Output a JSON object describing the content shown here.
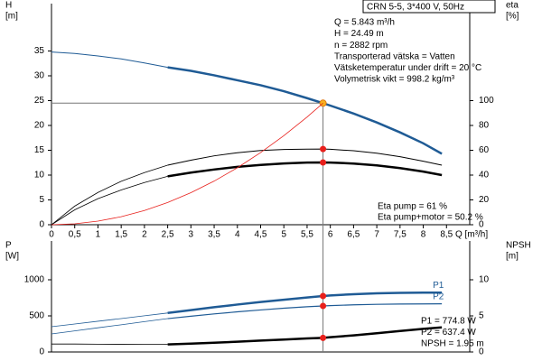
{
  "chart_data": [
    {
      "type": "line",
      "box_title": "CRN 5-5, 3*400 V, 50Hz",
      "info_lines": [
        "Q = 5.843 m³/h",
        "H = 24.49 m",
        "n = 2882 rpm",
        "Transporterad vätska = Vatten",
        "Vätsketemperatur under drift = 20 °C",
        "Volymetrisk vikt = 998.2 kg/m³"
      ],
      "eta_lines": [
        "Eta pump = 61 %",
        "Eta pump+motor = 50.2 %"
      ],
      "x_label": "Q [m³/h]",
      "y_label": [
        "H",
        "[m]"
      ],
      "y2_label": [
        "eta",
        "[%]"
      ],
      "xlim": [
        0,
        9
      ],
      "xticks": [
        0,
        {
          "value": 0.5,
          "label": "0,5"
        },
        1,
        {
          "value": 1.5,
          "label": "1,5"
        },
        2,
        {
          "value": 2.5,
          "label": "2,5"
        },
        3,
        {
          "value": 3.5,
          "label": "3,5"
        },
        4,
        {
          "value": 4.5,
          "label": "4,5"
        },
        5,
        {
          "value": 5.5,
          "label": "5,5"
        },
        6,
        {
          "value": 6.5,
          "label": "6,5"
        },
        7,
        {
          "value": 7.5,
          "label": "7,5"
        },
        8,
        {
          "value": 8.5,
          "label": "8,5"
        }
      ],
      "ylim": [
        0,
        44
      ],
      "yticks": [
        0,
        5,
        10,
        15,
        20,
        25,
        30,
        35
      ],
      "y2lim": [
        0,
        176
      ],
      "y2ticks": [
        0,
        20,
        40,
        60,
        80,
        100
      ],
      "crosshair_x": 5.843,
      "crosshair_y": 24.49,
      "series": [
        {
          "color": "#1f5b95",
          "width": 1,
          "axis": "y",
          "x": [
            0,
            0.5,
            1,
            1.5,
            2,
            2.5
          ],
          "values": [
            34.8,
            34.5,
            34,
            33.4,
            32.6,
            31.7
          ]
        },
        {
          "color": "#1f5b95",
          "width": 2.5,
          "axis": "y",
          "marker_color": "#f7b21f",
          "x": [
            2.5,
            3,
            3.5,
            4,
            4.5,
            5,
            5.5,
            5.843,
            6,
            6.5,
            7,
            7.5,
            8,
            8.4
          ],
          "values": [
            31.7,
            31,
            30.1,
            29.1,
            28.1,
            26.9,
            25.5,
            24.49,
            24,
            22.4,
            20.6,
            18.6,
            16.4,
            14.3
          ]
        },
        {
          "color": "#000000",
          "width": 0.8,
          "axis": "y2",
          "x": [
            0,
            0.5,
            1,
            1.5,
            2,
            2.5
          ],
          "values": [
            0,
            15,
            26,
            35,
            42,
            48
          ]
        },
        {
          "color": "#000000",
          "width": 1,
          "axis": "y2",
          "marker_color": "#e8201c",
          "x": [
            2.5,
            3,
            3.5,
            4,
            4.5,
            5,
            5.5,
            5.843,
            6,
            6.5,
            7,
            7.5,
            8,
            8.4
          ],
          "values": [
            48,
            52,
            55.5,
            58,
            59.8,
            60.6,
            60.9,
            61,
            60.8,
            59.6,
            57.6,
            54.8,
            51.2,
            48
          ]
        },
        {
          "color": "#000000",
          "width": 0.8,
          "axis": "y2",
          "x": [
            0,
            0.5,
            1,
            1.5,
            2,
            2.5
          ],
          "values": [
            0,
            12,
            21,
            28,
            34,
            39
          ]
        },
        {
          "color": "#000000",
          "width": 2.5,
          "axis": "y2",
          "marker_color": "#e8201c",
          "x": [
            2.5,
            3,
            3.5,
            4,
            4.5,
            5,
            5.5,
            5.843,
            6,
            6.5,
            7,
            7.5,
            8,
            8.4
          ],
          "values": [
            39,
            42,
            44.5,
            46.6,
            48.2,
            49.4,
            50.1,
            50.2,
            50.1,
            49.3,
            47.8,
            45.6,
            42.8,
            40
          ]
        },
        {
          "color": "#e8201c",
          "width": 0.8,
          "axis": "y",
          "x": [
            0,
            0.5,
            1,
            1.5,
            2,
            2.5,
            3,
            3.5,
            4,
            4.5,
            5,
            5.5,
            5.843
          ],
          "values": [
            0,
            0.18,
            0.72,
            1.61,
            2.87,
            4.48,
            6.46,
            8.79,
            11.48,
            14.53,
            17.94,
            21.7,
            24.49
          ]
        }
      ]
    },
    {
      "type": "line",
      "info_lines": [
        "P1 = 774.8 W",
        "P2 = 637.4 W",
        "NPSH = 1.95 m"
      ],
      "y_label": [
        "P",
        "[W]"
      ],
      "y2_label": [
        "NPSH",
        "[m]"
      ],
      "xlim": [
        0,
        9
      ],
      "ylim": [
        0,
        1500
      ],
      "yticks": [
        0,
        500,
        1000
      ],
      "y2lim": [
        0,
        15
      ],
      "y2ticks": [
        0,
        5,
        10
      ],
      "crosshair_x": 5.843,
      "series": [
        {
          "color": "#1f5b95",
          "width": 0.8,
          "axis": "y",
          "x": [
            0,
            0.5,
            1,
            1.5,
            2,
            2.5
          ],
          "values": [
            350,
            388,
            426,
            463,
            502,
            540
          ]
        },
        {
          "name": "P1",
          "color": "#1f5b95",
          "width": 2.5,
          "axis": "y",
          "marker_color": "#e8201c",
          "x": [
            2.5,
            3,
            3.5,
            4,
            4.5,
            5,
            5.5,
            5.843,
            6,
            6.5,
            7,
            7.5,
            8,
            8.4
          ],
          "values": [
            540,
            580,
            620,
            657,
            692,
            724,
            755,
            774.8,
            783,
            800,
            812,
            819,
            822,
            822
          ]
        },
        {
          "color": "#1f5b95",
          "width": 0.8,
          "axis": "y",
          "x": [
            0,
            0.5,
            1,
            1.5,
            2,
            2.5
          ],
          "values": [
            250,
            292,
            335,
            377,
            420,
            462
          ]
        },
        {
          "name": "P2",
          "color": "#1f5b95",
          "width": 1.2,
          "axis": "y",
          "marker_color": "#e8201c",
          "x": [
            2.5,
            3,
            3.5,
            4,
            4.5,
            5,
            5.5,
            5.843,
            6,
            6.5,
            7,
            7.5,
            8,
            8.4
          ],
          "values": [
            462,
            495,
            527,
            556,
            582,
            606,
            627,
            637.4,
            642,
            653,
            660,
            664,
            666,
            667
          ]
        },
        {
          "color": "#000000",
          "width": 0.8,
          "axis": "y2",
          "x": [
            0,
            0.5,
            1,
            1.5,
            2,
            2.5
          ],
          "values": [
            1.1,
            1.1,
            1.08,
            1.07,
            1.06,
            1.05
          ]
        },
        {
          "color": "#000000",
          "width": 2.5,
          "axis": "y2",
          "marker_color": "#e8201c",
          "x": [
            2.5,
            3,
            3.5,
            4,
            4.5,
            5,
            5.5,
            5.843,
            6,
            6.5,
            7,
            7.5,
            8,
            8.4
          ],
          "values": [
            1.05,
            1.15,
            1.28,
            1.42,
            1.58,
            1.72,
            1.87,
            1.95,
            2.05,
            2.3,
            2.6,
            2.9,
            3.2,
            3.4
          ]
        }
      ]
    }
  ]
}
